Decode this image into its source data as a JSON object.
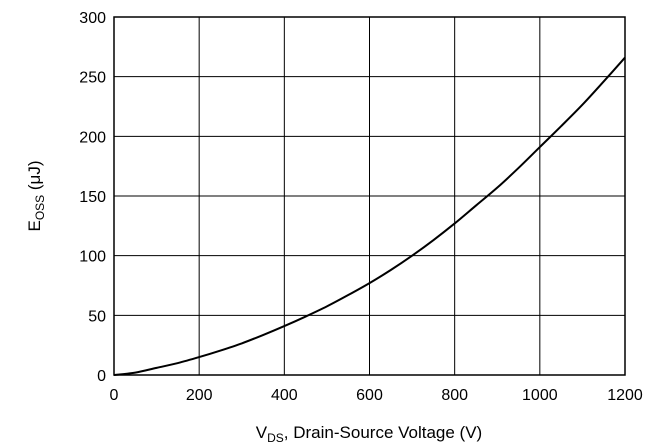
{
  "chart_data": {
    "type": "line",
    "xlabel": {
      "main": "V",
      "sub": "DS",
      "rest": ", Drain-Source Voltage (V)"
    },
    "ylabel": {
      "main": "E",
      "sub": "OSS",
      "rest": " (μJ)"
    },
    "xlim": [
      0,
      1200
    ],
    "ylim": [
      0,
      300
    ],
    "xticks": [
      0,
      200,
      400,
      600,
      800,
      1000,
      1200
    ],
    "yticks": [
      0,
      50,
      100,
      150,
      200,
      250,
      300
    ],
    "grid": true,
    "series": [
      {
        "x": [
          0,
          50,
          100,
          150,
          200,
          250,
          300,
          350,
          400,
          450,
          500,
          550,
          600,
          650,
          700,
          750,
          800,
          850,
          900,
          950,
          1000,
          1050,
          1100,
          1150,
          1200
        ],
        "y": [
          0,
          2,
          6,
          10,
          15,
          20.5,
          26.5,
          33.5,
          41,
          49,
          57.5,
          67,
          77,
          88,
          100,
          113,
          127,
          142,
          157,
          173.5,
          191,
          208.5,
          226.5,
          246,
          266
        ]
      }
    ]
  }
}
